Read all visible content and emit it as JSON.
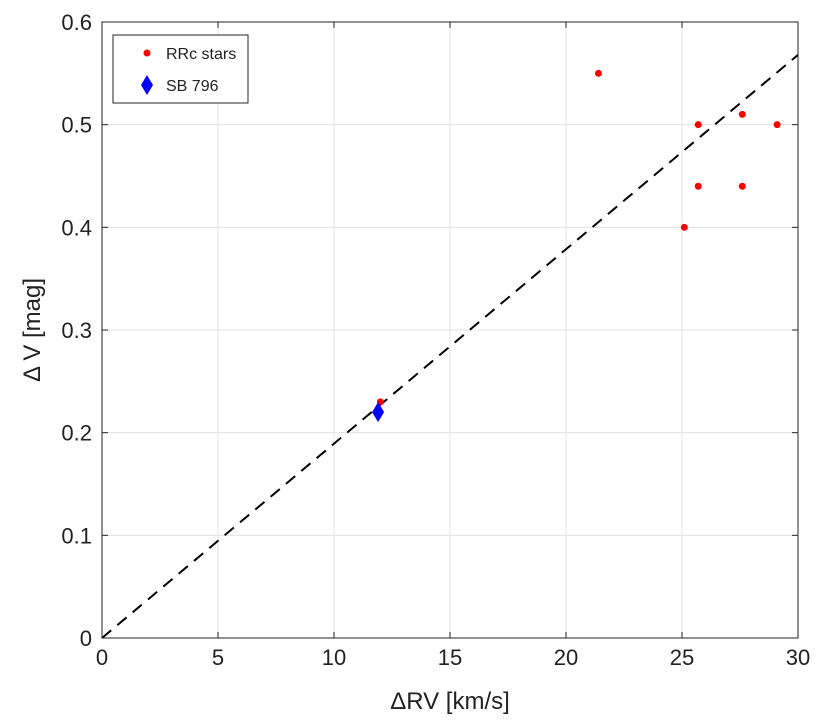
{
  "chart_data": {
    "type": "scatter",
    "title": "",
    "xlabel": "ΔRV [km/s]",
    "ylabel": "Δ V [mag]",
    "xlim": [
      0,
      30
    ],
    "ylim": [
      0,
      0.6
    ],
    "xticks": [
      0,
      5,
      10,
      15,
      20,
      25,
      30
    ],
    "yticks": [
      0,
      0.1,
      0.2,
      0.3,
      0.4,
      0.5,
      0.6
    ],
    "xtick_labels": [
      "0",
      "5",
      "10",
      "15",
      "20",
      "25",
      "30"
    ],
    "ytick_labels": [
      "0",
      "0.1",
      "0.2",
      "0.3",
      "0.4",
      "0.5",
      "0.6"
    ],
    "grid": true,
    "legend_position": "top-left",
    "series": [
      {
        "name": "RRc stars",
        "marker": "circle",
        "color": "#ff0000",
        "points": [
          {
            "x": 21.4,
            "y": 0.55
          },
          {
            "x": 25.7,
            "y": 0.5
          },
          {
            "x": 27.6,
            "y": 0.51
          },
          {
            "x": 29.1,
            "y": 0.5
          },
          {
            "x": 25.7,
            "y": 0.44
          },
          {
            "x": 27.6,
            "y": 0.44
          },
          {
            "x": 25.1,
            "y": 0.4
          },
          {
            "x": 12.0,
            "y": 0.23
          }
        ]
      },
      {
        "name": "SB 796",
        "marker": "diamond",
        "color": "#0000ff",
        "points": [
          {
            "x": 11.9,
            "y": 0.22
          }
        ]
      }
    ],
    "reference_line": {
      "style": "dashed",
      "color": "#000000",
      "x": [
        0,
        30
      ],
      "y": [
        0,
        0.568
      ]
    }
  }
}
